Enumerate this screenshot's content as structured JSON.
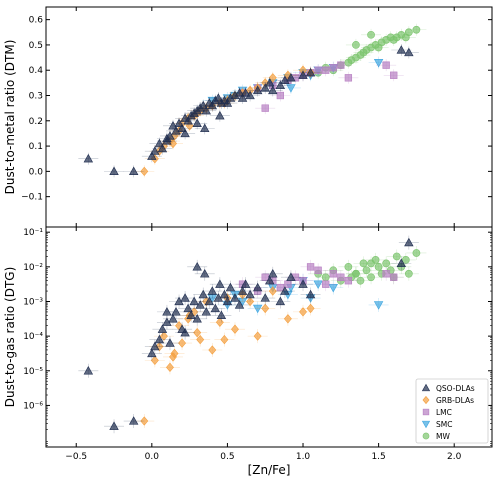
{
  "chart_data": {
    "type": "scatter",
    "shared_x": {
      "label": "[Zn/Fe]",
      "ticks": [
        -0.5,
        0.0,
        0.5,
        1.0,
        1.5,
        2.0
      ],
      "tick_labels": [
        "−0.5",
        "0.0",
        "0.5",
        "1.0",
        "1.5",
        "2.0"
      ],
      "lim": [
        -0.7,
        2.25
      ]
    },
    "panels": [
      {
        "id": "dtm",
        "ylabel": "Dust-to-metal ratio (DTM)",
        "ylim": [
          -0.22,
          0.65
        ],
        "yticks": [
          -0.1,
          0.0,
          0.1,
          0.2,
          0.3,
          0.4,
          0.5,
          0.6
        ],
        "ytick_labels": [
          "−0.1",
          "0.0",
          "0.1",
          "0.2",
          "0.3",
          "0.4",
          "0.5",
          "0.6"
        ],
        "scale": "linear"
      },
      {
        "id": "dtg",
        "ylabel": "Dust-to-gas ratio (DTG)",
        "ylim_log10": [
          -7.2,
          -0.85
        ],
        "yticks_log10": [
          -6,
          -5,
          -4,
          -3,
          -2,
          -1
        ],
        "ytick_labels": [
          "10⁻⁶",
          "10⁻⁵",
          "10⁻⁴",
          "10⁻³",
          "10⁻²",
          "10⁻¹"
        ],
        "scale": "log"
      }
    ],
    "legend": {
      "placement": "lower-right of bottom panel",
      "entries": [
        {
          "key": "qso",
          "label": "QSO-DLAs"
        },
        {
          "key": "grb",
          "label": "GRB-DLAs"
        },
        {
          "key": "lmc",
          "label": "LMC"
        },
        {
          "key": "smc",
          "label": "SMC"
        },
        {
          "key": "mw",
          "label": "MW"
        }
      ]
    },
    "series": [
      {
        "key": "qso",
        "name": "QSO-DLAs",
        "marker": "triangle-up",
        "color": "#1f2d4f",
        "points": [
          [
            -0.42,
            0.05,
            -5.0
          ],
          [
            -0.25,
            0.0,
            -6.6
          ],
          [
            -0.12,
            0.0,
            -6.45
          ],
          [
            0.0,
            0.06,
            -4.5
          ],
          [
            0.02,
            0.08,
            -4.3
          ],
          [
            0.05,
            0.11,
            -4.1
          ],
          [
            0.07,
            0.09,
            -3.8
          ],
          [
            0.1,
            0.12,
            -3.6
          ],
          [
            0.12,
            0.14,
            -4.2
          ],
          [
            0.14,
            0.18,
            -3.5
          ],
          [
            0.16,
            0.16,
            -3.3
          ],
          [
            0.18,
            0.19,
            -3.0
          ],
          [
            0.2,
            0.17,
            -3.8
          ],
          [
            0.22,
            0.21,
            -2.9
          ],
          [
            0.24,
            0.2,
            -3.2
          ],
          [
            0.26,
            0.22,
            -3.4
          ],
          [
            0.28,
            0.23,
            -3.0
          ],
          [
            0.3,
            0.24,
            -3.5
          ],
          [
            0.32,
            0.25,
            -3.1
          ],
          [
            0.34,
            0.26,
            -2.8
          ],
          [
            0.36,
            0.24,
            -3.3
          ],
          [
            0.38,
            0.27,
            -3.0
          ],
          [
            0.4,
            0.26,
            -2.7
          ],
          [
            0.42,
            0.28,
            -3.2
          ],
          [
            0.44,
            0.29,
            -2.9
          ],
          [
            0.46,
            0.27,
            -3.4
          ],
          [
            0.48,
            0.28,
            -2.8
          ],
          [
            0.5,
            0.27,
            -3.0
          ],
          [
            0.52,
            0.29,
            -2.6
          ],
          [
            0.55,
            0.3,
            -2.9
          ],
          [
            0.58,
            0.31,
            -3.1
          ],
          [
            0.6,
            0.29,
            -2.7
          ],
          [
            0.62,
            0.31,
            -2.5
          ],
          [
            0.65,
            0.3,
            -2.8
          ],
          [
            0.7,
            0.32,
            -2.6
          ],
          [
            0.75,
            0.33,
            -2.9
          ],
          [
            0.78,
            0.35,
            -2.4
          ],
          [
            0.8,
            0.32,
            -2.2
          ],
          [
            0.85,
            0.34,
            -3.0
          ],
          [
            0.88,
            0.36,
            -2.7
          ],
          [
            0.92,
            0.37,
            -2.3
          ],
          [
            1.0,
            0.38,
            -2.5
          ],
          [
            1.05,
            0.39,
            -2.8
          ],
          [
            1.65,
            0.48,
            -1.9
          ],
          [
            1.7,
            0.47,
            -1.3
          ],
          [
            0.3,
            0.19,
            -2.0
          ],
          [
            0.35,
            0.17,
            -2.2
          ],
          [
            0.22,
            0.15,
            -3.9
          ],
          [
            0.1,
            0.13,
            -3.3
          ],
          [
            0.45,
            0.22,
            -2.5
          ]
        ]
      },
      {
        "key": "grb",
        "name": "GRB-DLAs",
        "marker": "diamond",
        "color": "#f4a040",
        "points": [
          [
            -0.05,
            0.0,
            -6.45
          ],
          [
            0.02,
            0.05,
            -4.7
          ],
          [
            0.05,
            0.08,
            -4.3
          ],
          [
            0.08,
            0.1,
            -4.0
          ],
          [
            0.12,
            0.12,
            -4.9
          ],
          [
            0.15,
            0.14,
            -4.5
          ],
          [
            0.18,
            0.16,
            -3.7
          ],
          [
            0.2,
            0.19,
            -4.2
          ],
          [
            0.24,
            0.21,
            -3.5
          ],
          [
            0.28,
            0.22,
            -3.3
          ],
          [
            0.32,
            0.24,
            -4.1
          ],
          [
            0.36,
            0.25,
            -3.0
          ],
          [
            0.4,
            0.26,
            -4.4
          ],
          [
            0.45,
            0.27,
            -3.6
          ],
          [
            0.5,
            0.28,
            -2.9
          ],
          [
            0.55,
            0.3,
            -3.8
          ],
          [
            0.6,
            0.31,
            -2.8
          ],
          [
            0.65,
            0.32,
            -3.0
          ],
          [
            0.7,
            0.33,
            -4.0
          ],
          [
            0.75,
            0.35,
            -3.2
          ],
          [
            0.8,
            0.37,
            -2.7
          ],
          [
            0.9,
            0.38,
            -3.5
          ],
          [
            1.0,
            0.4,
            -3.3
          ],
          [
            1.05,
            0.39,
            -3.2
          ],
          [
            0.14,
            0.11,
            -4.6
          ],
          [
            0.3,
            0.23,
            -3.9
          ],
          [
            0.48,
            0.27,
            -4.1
          ],
          [
            0.25,
            0.18,
            -3.4
          ]
        ]
      },
      {
        "key": "lmc",
        "name": "LMC",
        "marker": "square",
        "color": "#b77fc2",
        "points": [
          [
            0.6,
            0.31,
            -2.5
          ],
          [
            0.7,
            0.33,
            -2.7
          ],
          [
            0.75,
            0.25,
            -2.3
          ],
          [
            0.8,
            0.34,
            -2.4
          ],
          [
            0.85,
            0.3,
            -2.6
          ],
          [
            0.9,
            0.36,
            -2.5
          ],
          [
            0.95,
            0.37,
            -2.3
          ],
          [
            1.0,
            0.38,
            -2.4
          ],
          [
            1.05,
            0.39,
            -2.0
          ],
          [
            1.1,
            0.4,
            -2.1
          ],
          [
            1.15,
            0.4,
            -2.5
          ],
          [
            1.2,
            0.41,
            -2.2
          ],
          [
            1.25,
            0.42,
            -2.3
          ],
          [
            1.3,
            0.37,
            -2.4
          ],
          [
            1.55,
            0.42,
            -2.2
          ],
          [
            1.6,
            0.38,
            -2.3
          ]
        ]
      },
      {
        "key": "smc",
        "name": "SMC",
        "marker": "triangle-down",
        "color": "#3ea6e0",
        "points": [
          [
            0.4,
            0.28,
            -2.9
          ],
          [
            0.5,
            0.29,
            -3.1
          ],
          [
            0.55,
            0.3,
            -2.8
          ],
          [
            0.6,
            0.32,
            -3.0
          ],
          [
            0.7,
            0.33,
            -3.2
          ],
          [
            0.8,
            0.35,
            -2.6
          ],
          [
            0.9,
            0.37,
            -2.8
          ],
          [
            0.92,
            0.33,
            -2.6
          ],
          [
            1.0,
            0.39,
            -2.4
          ],
          [
            1.05,
            0.38,
            -2.9
          ],
          [
            1.1,
            0.4,
            -2.5
          ],
          [
            1.2,
            0.41,
            -2.6
          ],
          [
            1.5,
            0.43,
            -3.1
          ]
        ]
      },
      {
        "key": "mw",
        "name": "MW",
        "marker": "circle",
        "color": "#7cc46e",
        "points": [
          [
            1.1,
            0.39,
            -2.2
          ],
          [
            1.15,
            0.41,
            -2.3
          ],
          [
            1.2,
            0.4,
            -2.1
          ],
          [
            1.25,
            0.42,
            -2.4
          ],
          [
            1.3,
            0.43,
            -2.0
          ],
          [
            1.32,
            0.44,
            -2.3
          ],
          [
            1.35,
            0.45,
            -2.2
          ],
          [
            1.38,
            0.46,
            -2.4
          ],
          [
            1.4,
            0.47,
            -1.9
          ],
          [
            1.42,
            0.48,
            -2.1
          ],
          [
            1.45,
            0.49,
            -2.3
          ],
          [
            1.48,
            0.5,
            -1.8
          ],
          [
            1.5,
            0.49,
            -2.0
          ],
          [
            1.52,
            0.51,
            -2.2
          ],
          [
            1.55,
            0.52,
            -1.9
          ],
          [
            1.58,
            0.53,
            -2.1
          ],
          [
            1.6,
            0.52,
            -2.3
          ],
          [
            1.62,
            0.53,
            -1.7
          ],
          [
            1.65,
            0.54,
            -2.0
          ],
          [
            1.68,
            0.53,
            -1.8
          ],
          [
            1.7,
            0.55,
            -2.2
          ],
          [
            1.75,
            0.56,
            -1.6
          ],
          [
            1.35,
            0.5,
            -2.2
          ],
          [
            1.45,
            0.54,
            -1.9
          ]
        ]
      }
    ]
  }
}
